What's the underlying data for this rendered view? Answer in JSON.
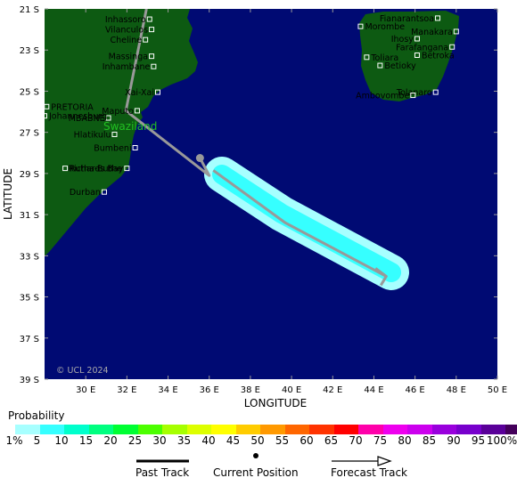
{
  "map": {
    "lat_labels": [
      "21 S",
      "23 S",
      "25 S",
      "27 S",
      "29 S",
      "31 S",
      "33 S",
      "35 S",
      "37 S",
      "39 S"
    ],
    "lon_labels": [
      "30 E",
      "32 E",
      "34 E",
      "36 E",
      "38 E",
      "40 E",
      "42 E",
      "44 E",
      "46 E",
      "48 E",
      "50 E"
    ],
    "x_axis_title": "LONGITUDE",
    "y_axis_title": "LATITUDE",
    "copyright": "© UCL 2024",
    "country_label": "Swaziland",
    "extent": {
      "lon": [
        28,
        50
      ],
      "lat": [
        -21,
        -39
      ]
    },
    "colors": {
      "ocean": "#000a73",
      "land": "#0d5a12",
      "track": "#999999",
      "prob_inner": "#36ffff",
      "prob_outer": "#a7ffff"
    },
    "cities_africa": [
      {
        "name": "Inhassoro",
        "lon": 33.1,
        "lat": -21.5
      },
      {
        "name": "Vilanculos",
        "lon": 33.2,
        "lat": -22.0
      },
      {
        "name": "Cheline",
        "lon": 32.9,
        "lat": -22.5
      },
      {
        "name": "Massinga",
        "lon": 33.2,
        "lat": -23.3
      },
      {
        "name": "Inhambane",
        "lon": 33.3,
        "lat": -23.8
      },
      {
        "name": "Xai-Xai",
        "lon": 33.5,
        "lat": -25.05
      },
      {
        "name": "Maputo",
        "lon": 32.5,
        "lat": -25.95
      },
      {
        "name": "PRETORIA",
        "lon": 28.1,
        "lat": -25.75
      },
      {
        "name": "MBABNE",
        "lon": 31.1,
        "lat": -26.3
      },
      {
        "name": "Johannesburg",
        "lon": 28.0,
        "lat": -26.2
      },
      {
        "name": "Hlatikulu",
        "lon": 31.4,
        "lat": -27.1
      },
      {
        "name": "Bumbeni",
        "lon": 32.4,
        "lat": -27.75
      },
      {
        "name": "Rutha-Buthe",
        "lon": 29.0,
        "lat": -28.75
      },
      {
        "name": "Richards Bay",
        "lon": 32.0,
        "lat": -28.75
      },
      {
        "name": "Durban",
        "lon": 30.9,
        "lat": -29.9
      }
    ],
    "cities_madagascar": [
      {
        "name": "Fianarantsoa",
        "lon": 47.1,
        "lat": -21.45
      },
      {
        "name": "Morombe",
        "lon": 43.35,
        "lat": -21.85
      },
      {
        "name": "Manakara",
        "lon": 48.0,
        "lat": -22.1
      },
      {
        "name": "Ihosy",
        "lon": 46.1,
        "lat": -22.45
      },
      {
        "name": "Farafangana",
        "lon": 47.8,
        "lat": -22.85
      },
      {
        "name": "Toliara",
        "lon": 43.65,
        "lat": -23.35
      },
      {
        "name": "Betroka",
        "lon": 46.1,
        "lat": -23.25
      },
      {
        "name": "Betioky",
        "lon": 44.3,
        "lat": -23.75
      },
      {
        "name": "Tolanaro",
        "lon": 47.0,
        "lat": -25.05
      },
      {
        "name": "Ambovombe",
        "lon": 45.9,
        "lat": -25.2
      }
    ],
    "past_track": [
      [
        32.95,
        -21.0
      ],
      [
        31.95,
        -25.95
      ],
      [
        36.0,
        -29.1
      ],
      [
        35.55,
        -28.25
      ]
    ],
    "current_position": [
      35.55,
      -28.25
    ],
    "forecast_track": [
      [
        36.2,
        -28.85
      ],
      [
        39.7,
        -31.4
      ],
      [
        44.6,
        -34.0
      ]
    ]
  },
  "legend": {
    "title": "Probability",
    "labels": [
      "1%",
      "5",
      "10",
      "15",
      "20",
      "25",
      "30",
      "35",
      "40",
      "45",
      "50",
      "55",
      "60",
      "65",
      "70",
      "75",
      "80",
      "85",
      "90",
      "95",
      "100%"
    ],
    "colors": [
      "#a7ffff",
      "#36ffff",
      "#00ffcc",
      "#00ff80",
      "#00ff33",
      "#4cff00",
      "#a6ff00",
      "#ddff00",
      "#ffff00",
      "#ffcc00",
      "#ff9900",
      "#ff6600",
      "#ff3300",
      "#ff0000",
      "#ff00aa",
      "#ee00ee",
      "#cc00ee",
      "#9900dd",
      "#7700cc",
      "#5a0099",
      "#44005a"
    ],
    "past_track_label": "Past Track",
    "current_position_label": "Current Position",
    "forecast_track_label": "Forecast Track"
  }
}
